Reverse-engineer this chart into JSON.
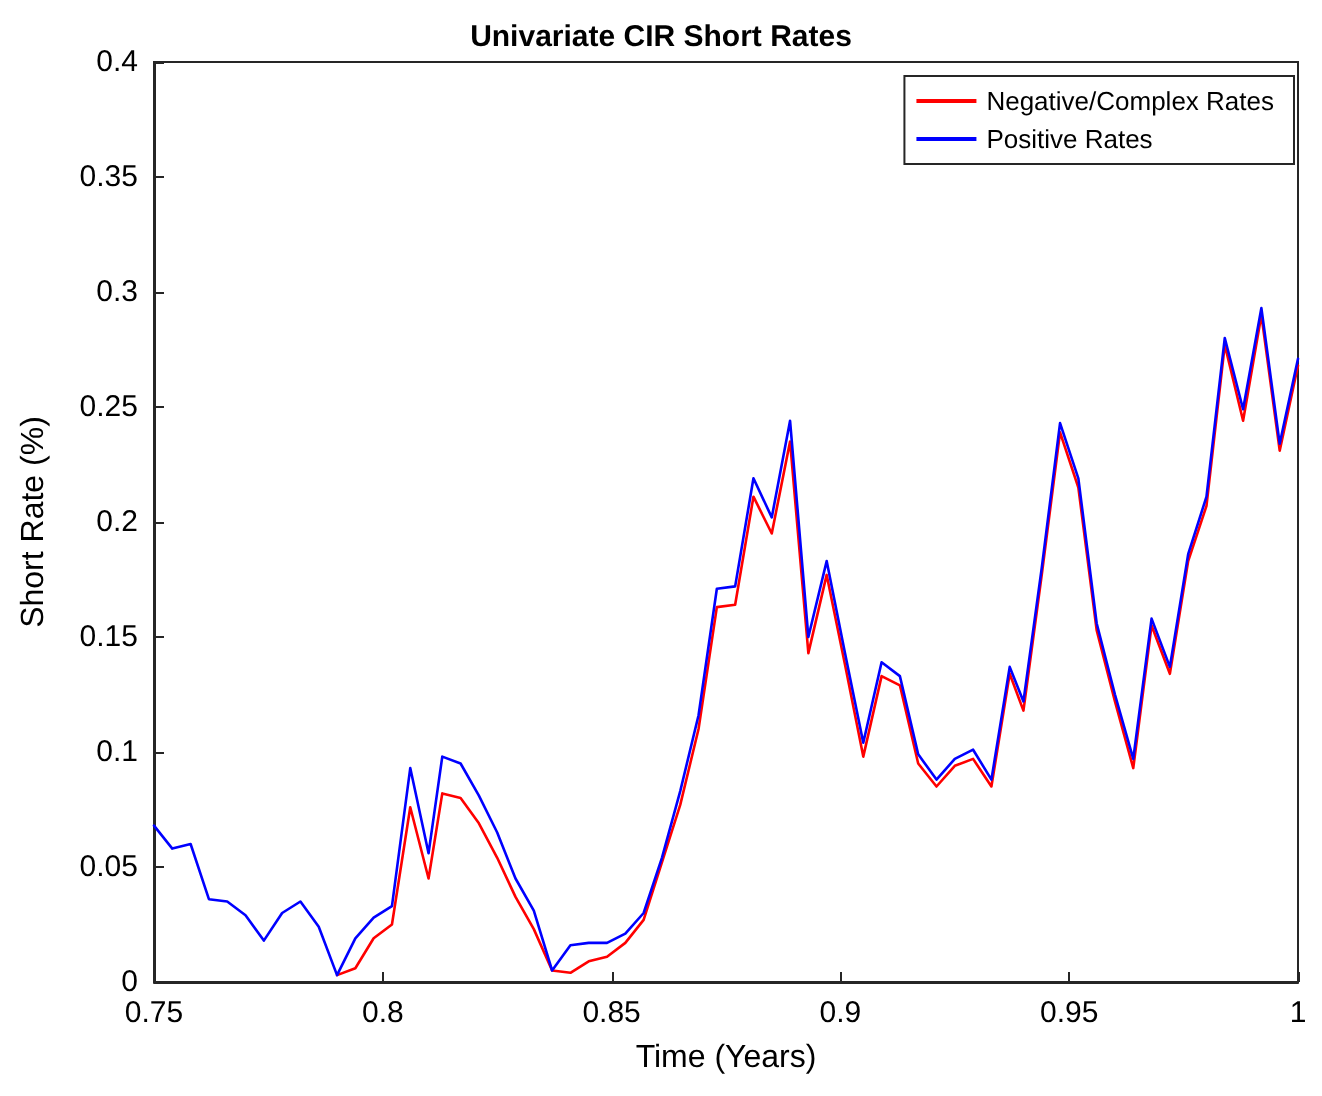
{
  "chart_data": {
    "type": "line",
    "title": "Univariate CIR Short Rates",
    "xlabel": "Time (Years)",
    "ylabel": "Short Rate (%)",
    "x": [
      0.75,
      0.754,
      0.758,
      0.762,
      0.766,
      0.77,
      0.774,
      0.778,
      0.782,
      0.786,
      0.79,
      0.794,
      0.798,
      0.802,
      0.806,
      0.81,
      0.813,
      0.817,
      0.821,
      0.825,
      0.829,
      0.833,
      0.837,
      0.841,
      0.845,
      0.849,
      0.853,
      0.857,
      0.861,
      0.865,
      0.869,
      0.873,
      0.877,
      0.881,
      0.885,
      0.889,
      0.893,
      0.897,
      0.901,
      0.905,
      0.909,
      0.913,
      0.917,
      0.921,
      0.925,
      0.929,
      0.933,
      0.937,
      0.94,
      0.944,
      0.948,
      0.952,
      0.956,
      0.96,
      0.964,
      0.968,
      0.972,
      0.976,
      0.98,
      0.984,
      0.988,
      0.992,
      0.996,
      1
    ],
    "series": [
      {
        "name": "Negative/Complex Rates",
        "color": "#ff0000",
        "values": [
          null,
          null,
          null,
          null,
          null,
          null,
          null,
          null,
          null,
          null,
          0.003,
          0.006,
          0.019,
          0.025,
          0.076,
          0.045,
          0.082,
          0.08,
          0.069,
          0.054,
          0.037,
          0.023,
          0.005,
          0.004,
          0.009,
          0.011,
          0.017,
          0.027,
          0.052,
          0.077,
          0.11,
          0.163,
          0.164,
          0.211,
          0.195,
          0.235,
          0.143,
          0.177,
          0.138,
          0.098,
          0.133,
          0.129,
          0.095,
          0.085,
          0.094,
          0.097,
          0.085,
          0.134,
          0.118,
          0.177,
          0.239,
          0.215,
          0.153,
          0.122,
          0.093,
          0.155,
          0.134,
          0.183,
          0.207,
          0.277,
          0.244,
          0.29,
          0.231,
          0.268
        ]
      },
      {
        "name": "Positive Rates",
        "color": "#0000ff",
        "values": [
          0.068,
          0.058,
          0.06,
          0.036,
          0.035,
          0.029,
          0.018,
          0.03,
          0.035,
          0.024,
          0.003,
          0.019,
          0.028,
          0.033,
          0.093,
          0.056,
          0.098,
          0.095,
          0.081,
          0.065,
          0.045,
          0.031,
          0.005,
          0.016,
          0.017,
          0.017,
          0.021,
          0.03,
          0.054,
          0.083,
          0.116,
          0.171,
          0.172,
          0.219,
          0.202,
          0.244,
          0.15,
          0.183,
          0.143,
          0.104,
          0.139,
          0.133,
          0.099,
          0.088,
          0.097,
          0.101,
          0.088,
          0.137,
          0.122,
          0.18,
          0.243,
          0.219,
          0.156,
          0.125,
          0.097,
          0.158,
          0.137,
          0.186,
          0.211,
          0.28,
          0.249,
          0.293,
          0.234,
          0.271
        ]
      }
    ],
    "xlim": [
      0.75,
      1
    ],
    "xticks": [
      0.75,
      0.8,
      0.85,
      0.9,
      0.95,
      1
    ],
    "ylim": [
      0,
      0.4
    ],
    "yticks": [
      0,
      0.05,
      0.1,
      0.15,
      0.2,
      0.25,
      0.3,
      0.35,
      0.4
    ],
    "grid": false,
    "legend": "top right",
    "marker": "none",
    "line_style": "solid"
  }
}
